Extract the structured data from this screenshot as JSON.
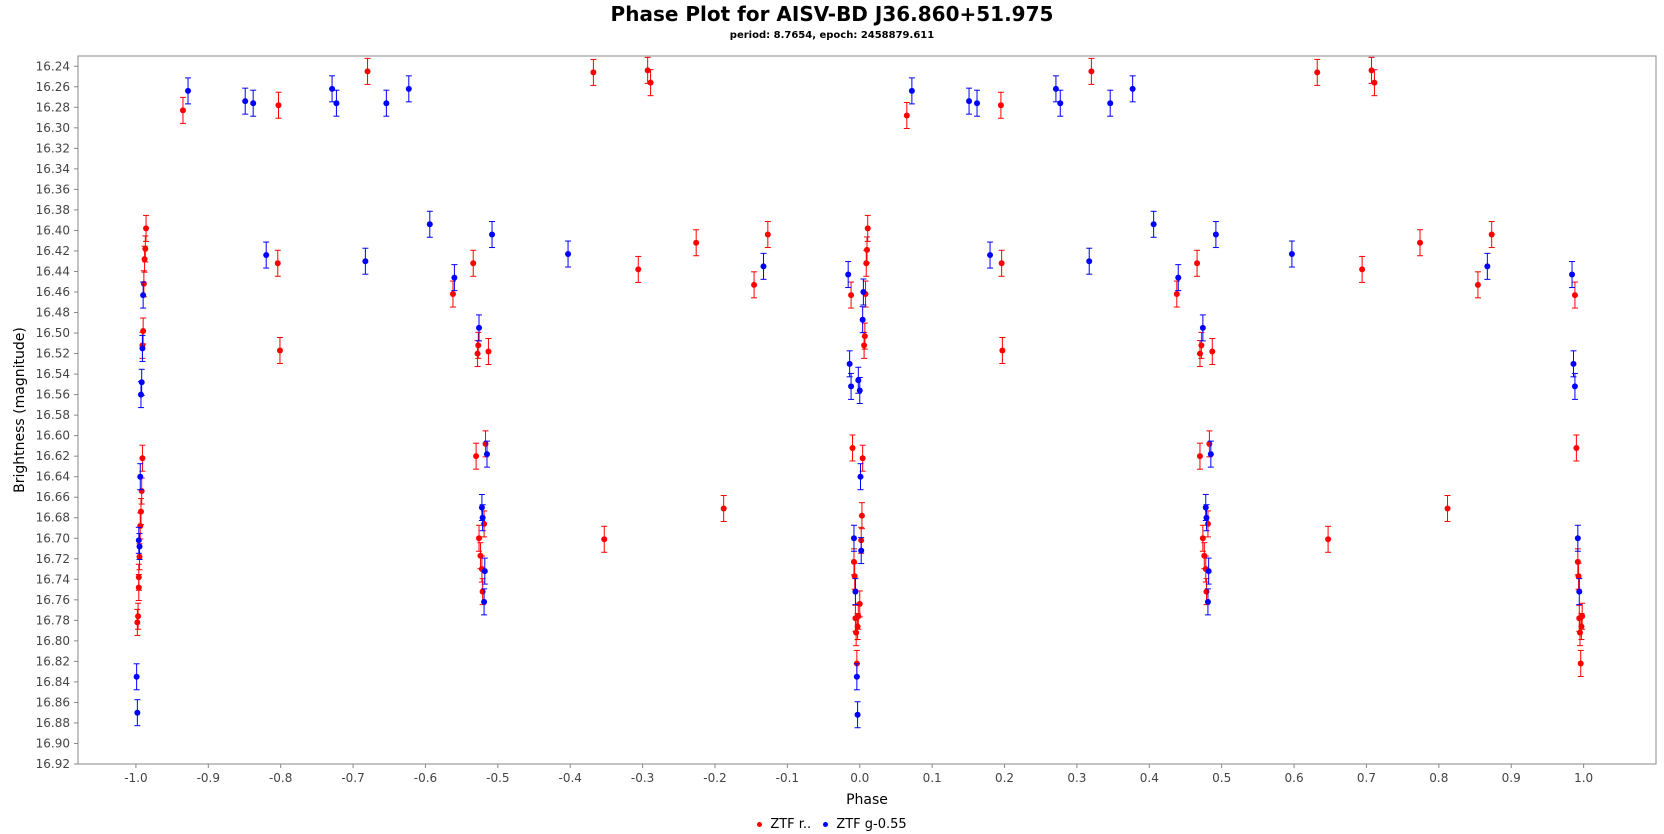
{
  "chart_data": {
    "type": "scatter",
    "title": "Phase Plot for AISV-BD J36.860+51.975",
    "subtitle": "period: 8.7654, epoch: 2458879.611",
    "xlabel": "Phase",
    "ylabel": "Brightness (magnitude)",
    "xlim": [
      -1.08,
      1.1
    ],
    "ylim": [
      16.23,
      16.92
    ],
    "y_inverted": true,
    "x_ticks": [
      "-1.0",
      "-0.9",
      "-0.8",
      "-0.7",
      "-0.6",
      "-0.5",
      "-0.4",
      "-0.3",
      "-0.2",
      "-0.1",
      "0.0",
      "0.1",
      "0.2",
      "0.3",
      "0.4",
      "0.5",
      "0.6",
      "0.7",
      "0.8",
      "0.9",
      "1.0"
    ],
    "y_ticks": [
      "16.24",
      "16.26",
      "16.28",
      "16.30",
      "16.32",
      "16.34",
      "16.36",
      "16.38",
      "16.40",
      "16.42",
      "16.44",
      "16.46",
      "16.48",
      "16.50",
      "16.52",
      "16.54",
      "16.56",
      "16.58",
      "16.60",
      "16.62",
      "16.64",
      "16.66",
      "16.68",
      "16.70",
      "16.72",
      "16.74",
      "16.76",
      "16.78",
      "16.80",
      "16.82",
      "16.84",
      "16.86",
      "16.88",
      "16.90",
      "16.92"
    ],
    "legend_position": "bottom-center",
    "grid": false,
    "series": [
      {
        "name": "ZTF r",
        "legend_label": "ZTF r..",
        "color": "#ff0000",
        "points": [
          [
            -0.998,
            16.782
          ],
          [
            -0.997,
            16.776
          ],
          [
            -0.996,
            16.748
          ],
          [
            -0.996,
            16.738
          ],
          [
            -0.995,
            16.718
          ],
          [
            -0.994,
            16.688
          ],
          [
            -0.993,
            16.674
          ],
          [
            -0.992,
            16.654
          ],
          [
            -0.991,
            16.622
          ],
          [
            -0.991,
            16.512
          ],
          [
            -0.99,
            16.498
          ],
          [
            -0.989,
            16.452
          ],
          [
            -0.988,
            16.428
          ],
          [
            -0.987,
            16.418
          ],
          [
            -0.986,
            16.398
          ],
          [
            -0.935,
            16.283
          ],
          [
            -0.803,
            16.278
          ],
          [
            -0.804,
            16.432
          ],
          [
            -0.801,
            16.517
          ],
          [
            -0.68,
            16.245
          ],
          [
            -0.562,
            16.462
          ],
          [
            -0.534,
            16.432
          ],
          [
            -0.528,
            16.52
          ],
          [
            -0.527,
            16.512
          ],
          [
            -0.53,
            16.62
          ],
          [
            -0.526,
            16.7
          ],
          [
            -0.524,
            16.717
          ],
          [
            -0.522,
            16.73
          ],
          [
            -0.521,
            16.752
          ],
          [
            -0.519,
            16.686
          ],
          [
            -0.517,
            16.608
          ],
          [
            -0.513,
            16.518
          ],
          [
            -0.368,
            16.246
          ],
          [
            -0.353,
            16.701
          ],
          [
            -0.293,
            16.244
          ],
          [
            -0.289,
            16.256
          ],
          [
            -0.306,
            16.438
          ],
          [
            -0.226,
            16.412
          ],
          [
            -0.188,
            16.671
          ],
          [
            -0.146,
            16.453
          ],
          [
            -0.127,
            16.404
          ],
          [
            -0.012,
            16.463
          ],
          [
            -0.01,
            16.612
          ],
          [
            -0.008,
            16.723
          ],
          [
            -0.007,
            16.737
          ],
          [
            -0.006,
            16.778
          ],
          [
            -0.005,
            16.792
          ],
          [
            -0.004,
            16.822
          ],
          [
            -0.003,
            16.786
          ],
          [
            -0.002,
            16.776
          ],
          [
            0.0,
            16.764
          ],
          [
            0.002,
            16.702
          ],
          [
            0.003,
            16.678
          ],
          [
            0.004,
            16.622
          ],
          [
            0.006,
            16.512
          ],
          [
            0.007,
            16.503
          ],
          [
            0.008,
            16.462
          ],
          [
            0.009,
            16.432
          ],
          [
            0.01,
            16.419
          ],
          [
            0.011,
            16.398
          ],
          [
            0.065,
            16.288
          ],
          [
            0.195,
            16.278
          ],
          [
            0.196,
            16.432
          ],
          [
            0.197,
            16.517
          ],
          [
            0.32,
            16.245
          ],
          [
            0.438,
            16.462
          ],
          [
            0.466,
            16.432
          ],
          [
            0.47,
            16.52
          ],
          [
            0.472,
            16.512
          ],
          [
            0.47,
            16.62
          ],
          [
            0.474,
            16.7
          ],
          [
            0.476,
            16.717
          ],
          [
            0.478,
            16.73
          ],
          [
            0.479,
            16.752
          ],
          [
            0.481,
            16.686
          ],
          [
            0.483,
            16.608
          ],
          [
            0.487,
            16.518
          ],
          [
            0.632,
            16.246
          ],
          [
            0.647,
            16.701
          ],
          [
            0.707,
            16.244
          ],
          [
            0.711,
            16.256
          ],
          [
            0.694,
            16.438
          ],
          [
            0.774,
            16.412
          ],
          [
            0.812,
            16.671
          ],
          [
            0.854,
            16.453
          ],
          [
            0.873,
            16.404
          ],
          [
            0.988,
            16.463
          ],
          [
            0.99,
            16.612
          ],
          [
            0.992,
            16.723
          ],
          [
            0.993,
            16.737
          ],
          [
            0.994,
            16.778
          ],
          [
            0.995,
            16.792
          ],
          [
            0.996,
            16.822
          ],
          [
            0.997,
            16.786
          ],
          [
            0.998,
            16.776
          ]
        ]
      },
      {
        "name": "ZTF g-0.55",
        "legend_label": "ZTF g-0.55",
        "color": "#0000ff",
        "points": [
          [
            -0.999,
            16.835
          ],
          [
            -0.998,
            16.87
          ],
          [
            -0.996,
            16.702
          ],
          [
            -0.995,
            16.708
          ],
          [
            -0.994,
            16.64
          ],
          [
            -0.993,
            16.56
          ],
          [
            -0.992,
            16.548
          ],
          [
            -0.991,
            16.515
          ],
          [
            -0.99,
            16.463
          ],
          [
            -0.928,
            16.264
          ],
          [
            -0.849,
            16.274
          ],
          [
            -0.838,
            16.276
          ],
          [
            -0.82,
            16.424
          ],
          [
            -0.729,
            16.262
          ],
          [
            -0.723,
            16.276
          ],
          [
            -0.683,
            16.43
          ],
          [
            -0.654,
            16.276
          ],
          [
            -0.623,
            16.262
          ],
          [
            -0.594,
            16.394
          ],
          [
            -0.56,
            16.446
          ],
          [
            -0.526,
            16.495
          ],
          [
            -0.522,
            16.67
          ],
          [
            -0.521,
            16.68
          ],
          [
            -0.519,
            16.762
          ],
          [
            -0.518,
            16.732
          ],
          [
            -0.515,
            16.618
          ],
          [
            -0.508,
            16.404
          ],
          [
            -0.403,
            16.423
          ],
          [
            -0.133,
            16.435
          ],
          [
            -0.016,
            16.443
          ],
          [
            -0.014,
            16.53
          ],
          [
            -0.012,
            16.552
          ],
          [
            -0.008,
            16.7
          ],
          [
            -0.006,
            16.752
          ],
          [
            -0.004,
            16.835
          ],
          [
            -0.003,
            16.872
          ],
          [
            -0.002,
            16.546
          ],
          [
            0.0,
            16.556
          ],
          [
            0.001,
            16.64
          ],
          [
            0.002,
            16.712
          ],
          [
            0.004,
            16.487
          ],
          [
            0.005,
            16.46
          ],
          [
            0.072,
            16.264
          ],
          [
            0.151,
            16.274
          ],
          [
            0.162,
            16.276
          ],
          [
            0.18,
            16.424
          ],
          [
            0.271,
            16.262
          ],
          [
            0.277,
            16.276
          ],
          [
            0.317,
            16.43
          ],
          [
            0.346,
            16.276
          ],
          [
            0.377,
            16.262
          ],
          [
            0.406,
            16.394
          ],
          [
            0.44,
            16.446
          ],
          [
            0.474,
            16.495
          ],
          [
            0.478,
            16.67
          ],
          [
            0.479,
            16.68
          ],
          [
            0.481,
            16.762
          ],
          [
            0.482,
            16.732
          ],
          [
            0.485,
            16.618
          ],
          [
            0.492,
            16.404
          ],
          [
            0.597,
            16.423
          ],
          [
            0.867,
            16.435
          ],
          [
            0.984,
            16.443
          ],
          [
            0.986,
            16.53
          ],
          [
            0.988,
            16.552
          ],
          [
            0.992,
            16.7
          ],
          [
            0.994,
            16.752
          ]
        ]
      }
    ]
  }
}
